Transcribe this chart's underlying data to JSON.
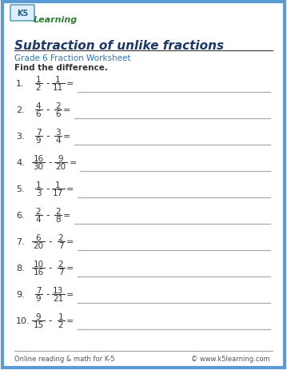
{
  "title": "Subtraction of unlike fractions",
  "subtitle": "Grade 6 Fraction Worksheet",
  "instruction": "Find the difference.",
  "footer_left": "Online reading & math for K-5",
  "footer_right": "© www.k5learning.com",
  "problems": [
    {
      "num": "1.",
      "n1": "1",
      "d1": "2",
      "n2": "1",
      "d2": "11"
    },
    {
      "num": "2.",
      "n1": "4",
      "d1": "6",
      "n2": "2",
      "d2": "6"
    },
    {
      "num": "3.",
      "n1": "7",
      "d1": "9",
      "n2": "3",
      "d2": "4"
    },
    {
      "num": "4.",
      "n1": "16",
      "d1": "30",
      "n2": "9",
      "d2": "20"
    },
    {
      "num": "5.",
      "n1": "1",
      "d1": "3",
      "n2": "1",
      "d2": "17"
    },
    {
      "num": "6.",
      "n1": "2",
      "d1": "4",
      "n2": "2",
      "d2": "8"
    },
    {
      "num": "7.",
      "n1": "6",
      "d1": "20",
      "n2": "2",
      "d2": "7"
    },
    {
      "num": "8.",
      "n1": "10",
      "d1": "16",
      "n2": "2",
      "d2": "7"
    },
    {
      "num": "9.",
      "n1": "7",
      "d1": "9",
      "n2": "13",
      "d2": "21"
    },
    {
      "num": "10.",
      "n1": "9",
      "d1": "15",
      "n2": "1",
      "d2": "2"
    }
  ],
  "bg_color": "#ffffff",
  "border_color": "#5b9bd5",
  "title_color": "#1f3864",
  "subtitle_color": "#2e75b6",
  "text_color": "#333333",
  "line_color": "#aaaaaa",
  "footer_color": "#555555"
}
